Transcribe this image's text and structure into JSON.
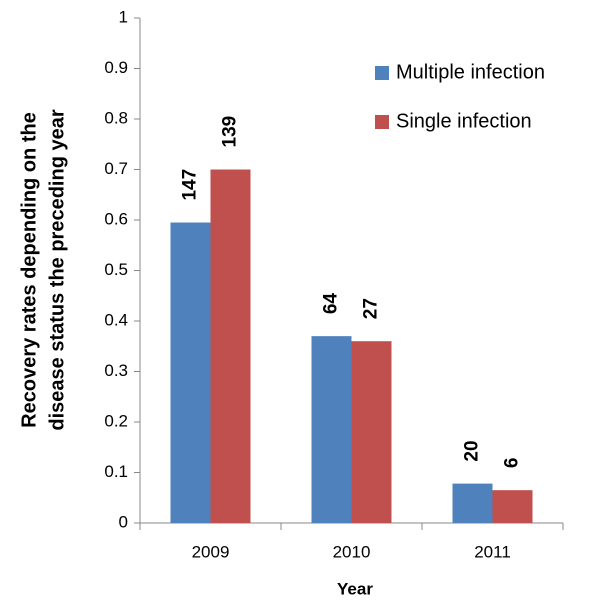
{
  "chart_data": {
    "type": "bar",
    "categories": [
      "2009",
      "2010",
      "2011"
    ],
    "series": [
      {
        "name": "Multiple infection",
        "color": "#4f81bd",
        "values": [
          0.595,
          0.37,
          0.078
        ],
        "counts": [
          147,
          64,
          20
        ]
      },
      {
        "name": "Single infection",
        "color": "#c0504d",
        "values": [
          0.7,
          0.36,
          0.065
        ],
        "counts": [
          139,
          27,
          6
        ]
      }
    ],
    "xlabel": "Year",
    "ylabel": [
      "Recovery  rates depending on the",
      "disease status  the preceding year"
    ],
    "ylim": [
      0,
      1
    ],
    "yticks": [
      0,
      0.1,
      0.2,
      0.3,
      0.4,
      0.5,
      0.6,
      0.7,
      0.8,
      0.9,
      1
    ],
    "grid": false
  }
}
